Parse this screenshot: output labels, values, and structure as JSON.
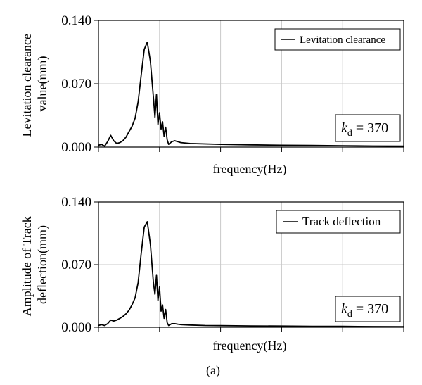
{
  "figure": {
    "caption": "(a)"
  },
  "chart_data": [
    {
      "type": "line",
      "ylabel_lines": [
        "Levitation clearance",
        "value(mm)"
      ],
      "xlabel": "frequency(Hz)",
      "ylim": [
        0,
        0.14
      ],
      "xlim": [
        0,
        1
      ],
      "yticks": [
        {
          "value": 0,
          "label": "0.000"
        },
        {
          "value": 0.07,
          "label": "0.070"
        },
        {
          "value": 0.14,
          "label": "0.140"
        }
      ],
      "grid": true,
      "legend": {
        "position": "top-right",
        "label": "Levitation clearance"
      },
      "annotation": {
        "symbol": "k",
        "subscript": "d",
        "rest": " = 370"
      },
      "series": [
        {
          "name": "Levitation clearance",
          "x": [
            0,
            0.01,
            0.02,
            0.03,
            0.04,
            0.05,
            0.06,
            0.07,
            0.08,
            0.09,
            0.1,
            0.11,
            0.12,
            0.13,
            0.14,
            0.15,
            0.16,
            0.17,
            0.18,
            0.185,
            0.19,
            0.195,
            0.2,
            0.205,
            0.21,
            0.215,
            0.22,
            0.225,
            0.23,
            0.24,
            0.25,
            0.26,
            0.27,
            0.3,
            0.35,
            0.4,
            0.5,
            0.6,
            0.7,
            0.8,
            0.9,
            1.0
          ],
          "y": [
            0.002,
            0.003,
            0.001,
            0.006,
            0.013,
            0.007,
            0.004,
            0.005,
            0.007,
            0.011,
            0.017,
            0.023,
            0.032,
            0.05,
            0.08,
            0.108,
            0.116,
            0.095,
            0.055,
            0.033,
            0.058,
            0.025,
            0.038,
            0.02,
            0.028,
            0.012,
            0.022,
            0.008,
            0.003,
            0.006,
            0.007,
            0.006,
            0.005,
            0.004,
            0.0035,
            0.003,
            0.0025,
            0.002,
            0.0018,
            0.0015,
            0.0012,
            0.001
          ]
        }
      ]
    },
    {
      "type": "line",
      "ylabel_lines": [
        "Amplitude of Track",
        "deflection(mm)"
      ],
      "xlabel": "frequency(Hz)",
      "ylim": [
        0,
        0.14
      ],
      "xlim": [
        0,
        1
      ],
      "yticks": [
        {
          "value": 0,
          "label": "0.000"
        },
        {
          "value": 0.07,
          "label": "0.070"
        },
        {
          "value": 0.14,
          "label": "0.140"
        }
      ],
      "grid": true,
      "legend": {
        "position": "top-right",
        "label": "Track deflection"
      },
      "annotation": {
        "symbol": "k",
        "subscript": "d",
        "rest": " = 370"
      },
      "series": [
        {
          "name": "Track deflection",
          "x": [
            0,
            0.01,
            0.02,
            0.03,
            0.04,
            0.05,
            0.06,
            0.07,
            0.08,
            0.09,
            0.1,
            0.11,
            0.12,
            0.13,
            0.14,
            0.15,
            0.16,
            0.17,
            0.18,
            0.185,
            0.19,
            0.195,
            0.2,
            0.205,
            0.21,
            0.215,
            0.22,
            0.225,
            0.23,
            0.24,
            0.25,
            0.26,
            0.27,
            0.3,
            0.35,
            0.4,
            0.5,
            0.6,
            0.7,
            0.8,
            0.9,
            1.0
          ],
          "y": [
            0.002,
            0.003,
            0.002,
            0.004,
            0.008,
            0.007,
            0.008,
            0.01,
            0.012,
            0.015,
            0.019,
            0.025,
            0.033,
            0.05,
            0.083,
            0.112,
            0.118,
            0.093,
            0.05,
            0.037,
            0.058,
            0.03,
            0.045,
            0.018,
            0.025,
            0.01,
            0.02,
            0.005,
            0.002,
            0.004,
            0.004,
            0.0035,
            0.003,
            0.0025,
            0.002,
            0.0018,
            0.0015,
            0.0013,
            0.0011,
            0.001,
            0.0008,
            0.0007
          ]
        }
      ]
    }
  ]
}
